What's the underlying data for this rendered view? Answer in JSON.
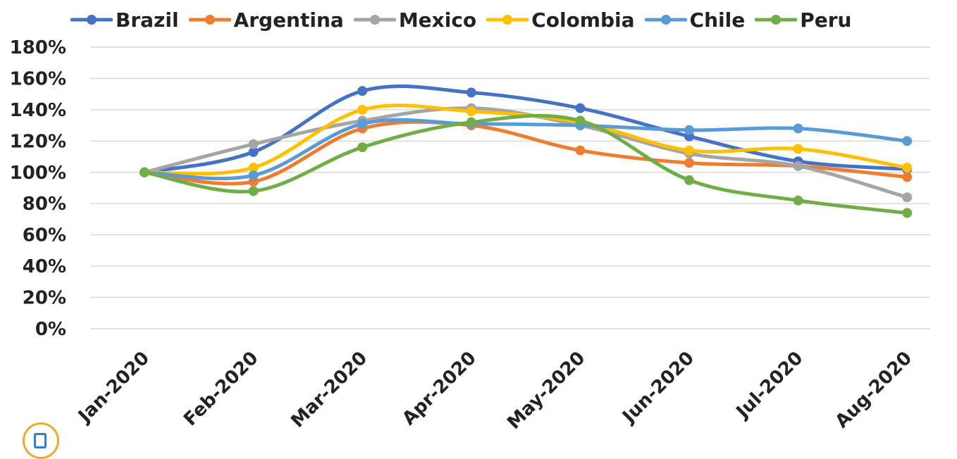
{
  "chart_data": {
    "type": "line",
    "categories": [
      "Jan-2020",
      "Feb-2020",
      "Mar-2020",
      "Apr-2020",
      "May-2020",
      "Jun-2020",
      "Jul-2020",
      "Aug-2020"
    ],
    "ylim": [
      0,
      180
    ],
    "ytick_step": 20,
    "ytick_suffix": "%",
    "grid": true,
    "legend_position": "top",
    "smooth": true,
    "series": [
      {
        "name": "Brazil",
        "color": "#4472c4",
        "values": [
          100,
          113,
          152,
          151,
          141,
          123,
          107,
          102
        ]
      },
      {
        "name": "Argentina",
        "color": "#ed7d31",
        "values": [
          100,
          94,
          128,
          130,
          114,
          106,
          104,
          97
        ]
      },
      {
        "name": "Mexico",
        "color": "#a5a5a5",
        "values": [
          100,
          118,
          133,
          141,
          130,
          112,
          104,
          84
        ]
      },
      {
        "name": "Colombia",
        "color": "#ffc000",
        "values": [
          100,
          103,
          140,
          139,
          132,
          114,
          115,
          103
        ]
      },
      {
        "name": "Chile",
        "color": "#5b9bd5",
        "values": [
          100,
          98,
          131,
          131,
          130,
          127,
          128,
          120
        ]
      },
      {
        "name": "Peru",
        "color": "#70ad47",
        "values": [
          100,
          88,
          116,
          132,
          133,
          95,
          82,
          74
        ]
      }
    ]
  }
}
